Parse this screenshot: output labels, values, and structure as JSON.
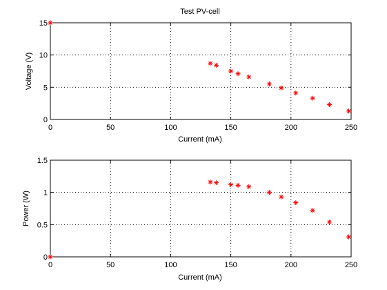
{
  "chart_data": [
    {
      "type": "scatter",
      "title": "Test PV-cell",
      "xlabel": "Current (mA)",
      "ylabel": "Voltage (V)",
      "xlim": [
        0,
        250
      ],
      "ylim": [
        0,
        15
      ],
      "xticks": [
        0,
        50,
        100,
        150,
        200,
        250
      ],
      "yticks": [
        0,
        5,
        10,
        15
      ],
      "xtick_labels": [
        "0",
        "50",
        "100",
        "150",
        "200",
        "250"
      ],
      "ytick_labels": [
        "0",
        "5",
        "10",
        "15"
      ],
      "grid": true,
      "marker_color": "#ff0000",
      "marker": "asterisk",
      "x": [
        0,
        133,
        138,
        150,
        156,
        165,
        182,
        192,
        204,
        218,
        232,
        248
      ],
      "y": [
        15.0,
        8.7,
        8.4,
        7.5,
        7.1,
        6.6,
        5.5,
        4.9,
        4.1,
        3.3,
        2.3,
        1.3
      ]
    },
    {
      "type": "scatter",
      "title": "",
      "xlabel": "Current (mA)",
      "ylabel": "Power (W)",
      "xlim": [
        0,
        250
      ],
      "ylim": [
        0,
        1.5
      ],
      "xticks": [
        0,
        50,
        100,
        150,
        200,
        250
      ],
      "yticks": [
        0,
        0.5,
        1,
        1.5
      ],
      "xtick_labels": [
        "0",
        "50",
        "100",
        "150",
        "200",
        "250"
      ],
      "ytick_labels": [
        "0",
        "0.5",
        "1",
        "1.5"
      ],
      "grid": true,
      "marker_color": "#ff0000",
      "marker": "asterisk",
      "x": [
        0,
        133,
        138,
        150,
        156,
        165,
        182,
        192,
        204,
        218,
        232,
        248
      ],
      "y": [
        0.0,
        1.16,
        1.15,
        1.12,
        1.11,
        1.09,
        1.0,
        0.93,
        0.84,
        0.72,
        0.54,
        0.31
      ]
    }
  ]
}
